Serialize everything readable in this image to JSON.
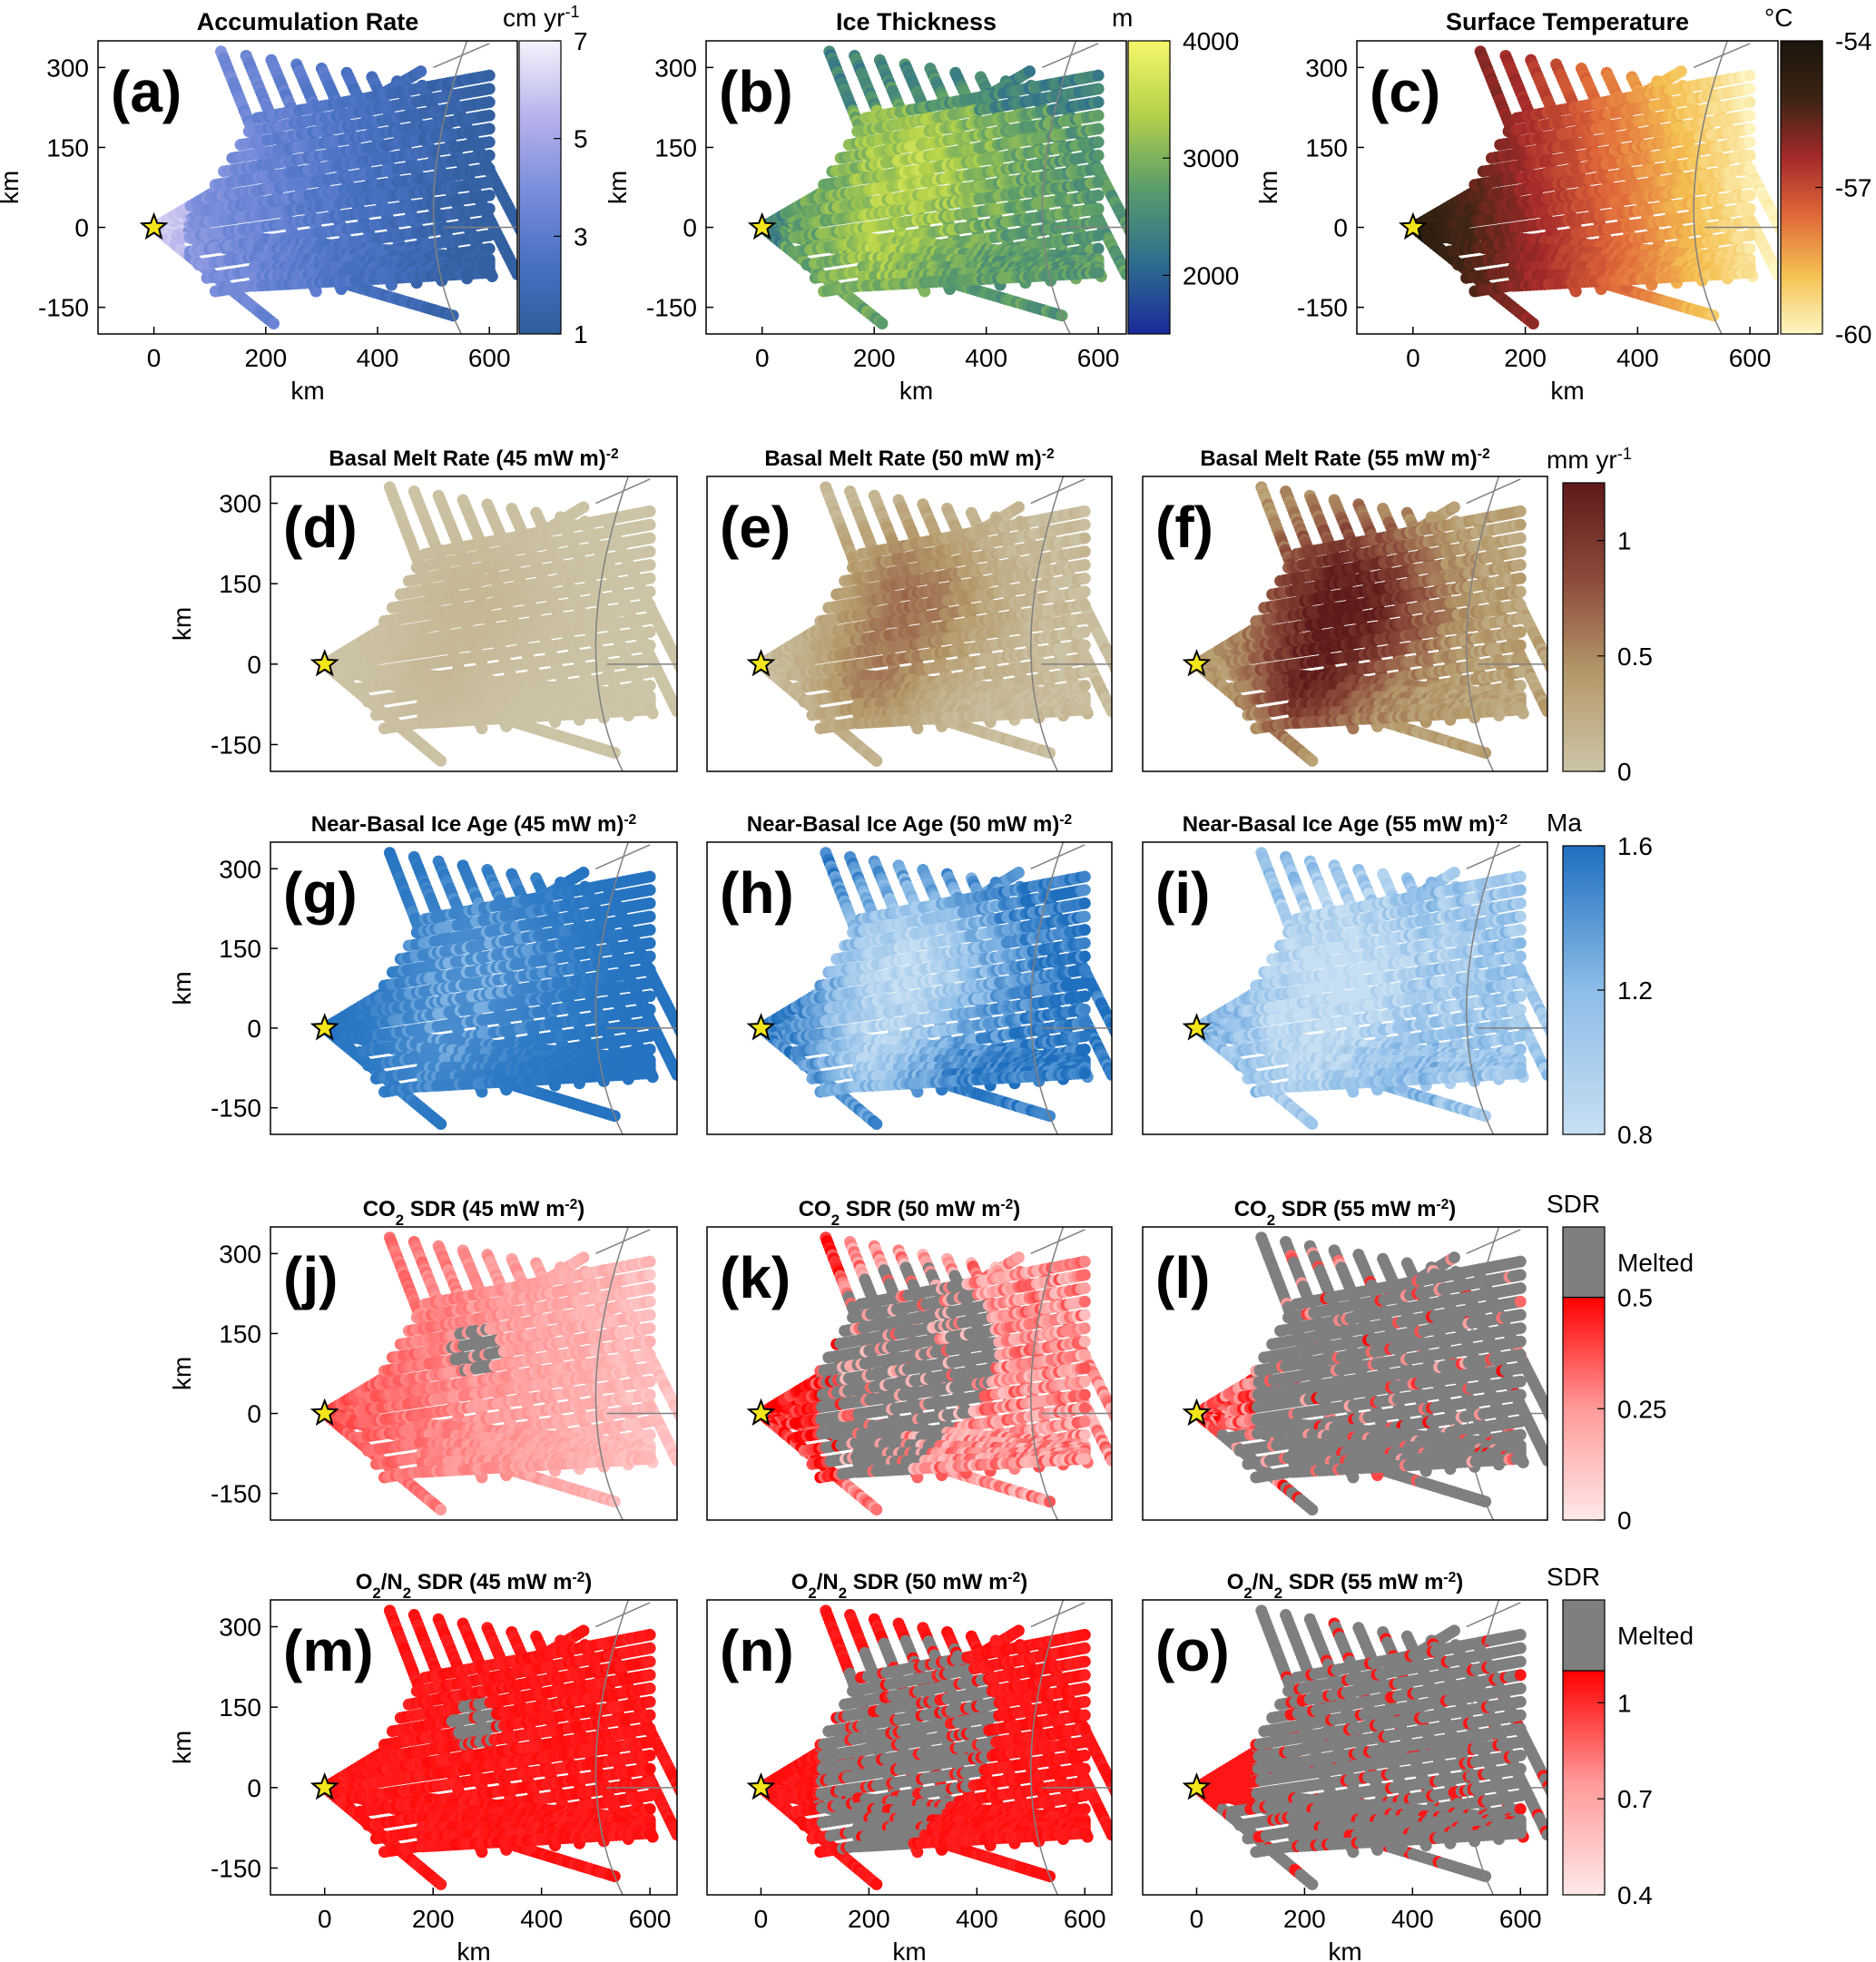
{
  "chart_data": [
    {
      "id": "a",
      "type": "map",
      "panel_label": "(a)",
      "title": "Accumulation Rate",
      "colormap": "accumulation",
      "clim": [
        1,
        7
      ],
      "colorbar": {
        "label": "cm  yr",
        "label_sup": "-1",
        "ticks": [
          1,
          3,
          5,
          7
        ]
      },
      "xlabel": "km",
      "ylabel": "km",
      "xticks": [
        0,
        200,
        400,
        600
      ],
      "yticks": [
        -150,
        0,
        150,
        300
      ],
      "xlim": [
        -100,
        650
      ],
      "ylim": [
        -200,
        350
      ]
    },
    {
      "id": "b",
      "type": "map",
      "panel_label": "(b)",
      "title": "Ice Thickness",
      "colormap": "thickness",
      "clim": [
        1500,
        4000
      ],
      "colorbar": {
        "label": "m",
        "label_sup": "",
        "ticks": [
          2000,
          3000,
          4000
        ]
      },
      "xlabel": "km",
      "ylabel": "km",
      "xticks": [
        0,
        200,
        400,
        600
      ],
      "yticks": [
        -150,
        0,
        150,
        300
      ],
      "xlim": [
        -100,
        650
      ],
      "ylim": [
        -200,
        350
      ]
    },
    {
      "id": "c",
      "type": "map",
      "panel_label": "(c)",
      "title": "Surface Temperature",
      "colormap": "temperature",
      "clim": [
        -60,
        -54
      ],
      "colorbar": {
        "label": "°C",
        "label_sup": "",
        "ticks": [
          -60,
          -57,
          -54
        ]
      },
      "xlabel": "km",
      "ylabel": "km",
      "xticks": [
        0,
        200,
        400,
        600
      ],
      "yticks": [
        -150,
        0,
        150,
        300
      ],
      "xlim": [
        -100,
        650
      ],
      "ylim": [
        -200,
        350
      ]
    },
    {
      "id": "d",
      "type": "map",
      "panel_label": "(d)",
      "title": "Basal  Melt  Rate  (45  mW  m",
      "title_sup": "-2",
      "title_end": ")",
      "colormap": "melt",
      "clim": [
        0,
        1.25
      ],
      "ylabel": "km",
      "yticks": [
        -150,
        0,
        150,
        300
      ],
      "xlim": [
        -100,
        650
      ],
      "ylim": [
        -200,
        350
      ]
    },
    {
      "id": "e",
      "type": "map",
      "panel_label": "(e)",
      "title": "Basal  Melt  Rate  (50  mW  m",
      "title_sup": "-2",
      "title_end": ")",
      "colormap": "melt",
      "clim": [
        0,
        1.25
      ],
      "xlim": [
        -100,
        650
      ],
      "ylim": [
        -200,
        350
      ]
    },
    {
      "id": "f",
      "type": "map",
      "panel_label": "(f)",
      "title": "Basal  Melt  Rate  (55  mW  m",
      "title_sup": "-2",
      "title_end": ")",
      "colormap": "melt",
      "clim": [
        0,
        1.25
      ],
      "colorbar": {
        "label": "mm  yr",
        "label_sup": "-1",
        "ticks": [
          0,
          0.5,
          1
        ]
      },
      "xlim": [
        -100,
        650
      ],
      "ylim": [
        -200,
        350
      ]
    },
    {
      "id": "g",
      "type": "map",
      "panel_label": "(g)",
      "title": "Near-Basal  Ice  Age  (45  mW  m",
      "title_sup": "-2",
      "title_end": ")",
      "colormap": "age",
      "clim": [
        0.8,
        1.6
      ],
      "ylabel": "km",
      "yticks": [
        -150,
        0,
        150,
        300
      ],
      "xlim": [
        -100,
        650
      ],
      "ylim": [
        -200,
        350
      ]
    },
    {
      "id": "h",
      "type": "map",
      "panel_label": "(h)",
      "title": "Near-Basal  Ice  Age  (50  mW  m",
      "title_sup": "-2",
      "title_end": ")",
      "colormap": "age",
      "clim": [
        0.8,
        1.6
      ],
      "xlim": [
        -100,
        650
      ],
      "ylim": [
        -200,
        350
      ]
    },
    {
      "id": "i",
      "type": "map",
      "panel_label": "(i)",
      "title": "Near-Basal  Ice  Age  (55  mW  m",
      "title_sup": "-2",
      "title_end": ")",
      "colormap": "age",
      "clim": [
        0.8,
        1.6
      ],
      "colorbar": {
        "label": "Ma",
        "label_sup": "",
        "ticks": [
          0.8,
          1.2,
          1.6
        ]
      },
      "xlim": [
        -100,
        650
      ],
      "ylim": [
        -200,
        350
      ]
    },
    {
      "id": "j",
      "type": "map",
      "panel_label": "(j)",
      "title": "CO",
      "title_sub": "2",
      "title_end": "  SDR  (45  mW  m",
      "title_sup": "-2",
      "title_end2": ")",
      "colormap": "sdr",
      "clim": [
        0,
        0.5
      ],
      "ylabel": "km",
      "yticks": [
        -150,
        0,
        150,
        300
      ],
      "xlim": [
        -100,
        650
      ],
      "ylim": [
        -200,
        350
      ]
    },
    {
      "id": "k",
      "type": "map",
      "panel_label": "(k)",
      "title": "CO",
      "title_sub": "2",
      "title_end": "  SDR  (50  mW  m",
      "title_sup": "-2",
      "title_end2": ")",
      "colormap": "sdr",
      "clim": [
        0,
        0.5
      ],
      "xlim": [
        -100,
        650
      ],
      "ylim": [
        -200,
        350
      ]
    },
    {
      "id": "l",
      "type": "map",
      "panel_label": "(l)",
      "title": "CO",
      "title_sub": "2",
      "title_end": "  SDR  (55  mW  m",
      "title_sup": "-2",
      "title_end2": ")",
      "colormap": "sdr",
      "clim": [
        0,
        0.5
      ],
      "colorbar": {
        "label": "SDR",
        "label_sup": "",
        "ticks": [
          0,
          0.25,
          0.5
        ],
        "melted_label": "Melted"
      },
      "xlim": [
        -100,
        650
      ],
      "ylim": [
        -200,
        350
      ]
    },
    {
      "id": "m",
      "type": "map",
      "panel_label": "(m)",
      "title": "O",
      "title_sub": "2",
      "title_mid": "/N",
      "title_sub2": "2",
      "title_end": "  SDR  (45  mW  m",
      "title_sup": "-2",
      "title_end2": ")",
      "colormap": "sdr",
      "clim": [
        0.4,
        1.1
      ],
      "xlabel": "km",
      "ylabel": "km",
      "xticks": [
        0,
        200,
        400,
        600
      ],
      "yticks": [
        -150,
        0,
        150,
        300
      ],
      "xlim": [
        -100,
        650
      ],
      "ylim": [
        -200,
        350
      ]
    },
    {
      "id": "n",
      "type": "map",
      "panel_label": "(n)",
      "title": "O",
      "title_sub": "2",
      "title_mid": "/N",
      "title_sub2": "2",
      "title_end": "  SDR  (50  mW  m",
      "title_sup": "-2",
      "title_end2": ")",
      "colormap": "sdr",
      "clim": [
        0.4,
        1.1
      ],
      "xlabel": "km",
      "xticks": [
        0,
        200,
        400,
        600
      ],
      "xlim": [
        -100,
        650
      ],
      "ylim": [
        -200,
        350
      ]
    },
    {
      "id": "o",
      "type": "map",
      "panel_label": "(o)",
      "title": "O",
      "title_sub": "2",
      "title_mid": "/N",
      "title_sub2": "2",
      "title_end": "  SDR  (55  mW  m",
      "title_sup": "-2",
      "title_end2": ")",
      "colormap": "sdr",
      "clim": [
        0.4,
        1.1
      ],
      "colorbar": {
        "label": "SDR",
        "label_sup": "",
        "ticks": [
          0.4,
          0.7,
          1
        ],
        "melted_label": "Melted"
      },
      "xlabel": "km",
      "xticks": [
        0,
        200,
        400,
        600
      ],
      "xlim": [
        -100,
        650
      ],
      "ylim": [
        -200,
        350
      ]
    }
  ],
  "colors": {
    "accumulation": [
      "#2f5d9c",
      "#4a72c4",
      "#7c8fdc",
      "#b9b4ec",
      "#f4f3fb"
    ],
    "thickness": [
      "#1a2a9a",
      "#2f6f8e",
      "#5b9d6a",
      "#b4d24a",
      "#f7f76a"
    ],
    "temperature": [
      "#fdf7c4",
      "#f5c152",
      "#e06a3a",
      "#a52a2a",
      "#3c2414",
      "#1c150c"
    ],
    "melt": [
      "#cdc5a8",
      "#b59a6b",
      "#8c4a3a",
      "#5e1a1a"
    ],
    "age": [
      "#c7dff3",
      "#8dbde8",
      "#1f6fbf"
    ],
    "sdr": [
      "#ffe8e8",
      "#ff9a9a",
      "#ff0000"
    ],
    "melted": "#7f7f7f",
    "star": "#f5e61c",
    "frame": "#000000"
  }
}
